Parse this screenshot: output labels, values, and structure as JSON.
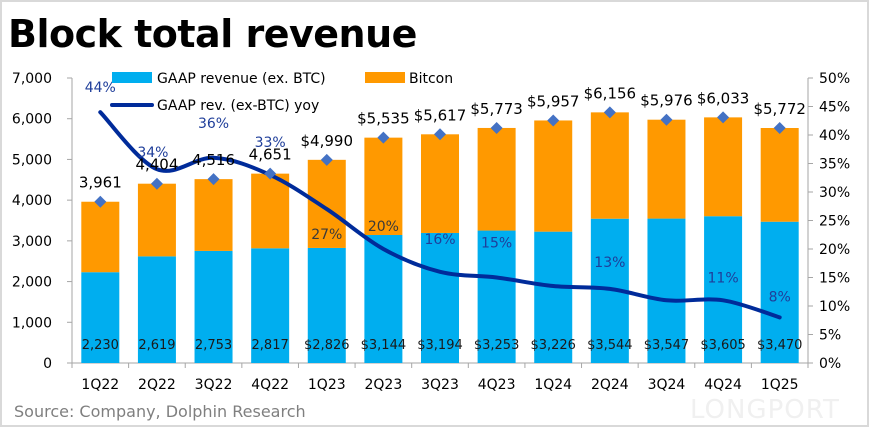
{
  "title": "Block total revenue",
  "source": "Source: Company, Dolphin Research",
  "watermark": "LONGPORT",
  "colors": {
    "gaap": "#00aeef",
    "bitcoin": "#ff9900",
    "yoy_line": "#002b9a",
    "marker": "#4472c4",
    "axis": "#a6a6a6"
  },
  "chart_data": {
    "type": "bar",
    "title": "Block total revenue",
    "xlabel": "",
    "ylabel": "",
    "ylim": [
      0,
      7000
    ],
    "y2lim": [
      0,
      50
    ],
    "yticks": [
      "0",
      "1,000",
      "2,000",
      "3,000",
      "4,000",
      "5,000",
      "6,000",
      "7,000"
    ],
    "y2ticks": [
      "0%",
      "5%",
      "10%",
      "15%",
      "20%",
      "25%",
      "30%",
      "35%",
      "40%",
      "45%",
      "50%"
    ],
    "legend": {
      "placement": "top-left",
      "entries": [
        "GAAP revenue (ex. BTC)",
        "Bitcon",
        "GAAP rev. (ex-BTC) yoy"
      ]
    },
    "categories": [
      "1Q22",
      "2Q22",
      "3Q22",
      "4Q22",
      "1Q23",
      "2Q23",
      "3Q23",
      "4Q23",
      "1Q24",
      "2Q24",
      "3Q24",
      "4Q24",
      "1Q25"
    ],
    "series": [
      {
        "name": "GAAP revenue (ex. BTC)",
        "type": "stacked-bar",
        "values": [
          2230,
          2619,
          2753,
          2817,
          2826,
          3144,
          3194,
          3253,
          3226,
          3544,
          3547,
          3605,
          3470
        ],
        "labels": [
          "2,230",
          "2,619",
          "2,753",
          "2,817",
          "$2,826",
          "$3,144",
          "$3,194",
          "$3,253",
          "$3,226",
          "$3,544",
          "$3,547",
          "$3,605",
          "$3,470"
        ]
      },
      {
        "name": "Bitcon",
        "type": "stacked-bar",
        "values": [
          1731,
          1785,
          1763,
          1834,
          2164,
          2391,
          2423,
          2520,
          2731,
          2612,
          2429,
          2428,
          2302
        ]
      },
      {
        "name": "Total revenue",
        "type": "marker",
        "values": [
          3961,
          4404,
          4516,
          4651,
          4990,
          5535,
          5617,
          5773,
          5957,
          6156,
          5976,
          6033,
          5772
        ],
        "labels": [
          "3,961",
          "4,404",
          "4,516",
          "4,651",
          "$4,990",
          "$5,535",
          "$5,617",
          "$5,773",
          "$5,957",
          "$6,156",
          "$5,976",
          "$6,033",
          "$5,772"
        ]
      },
      {
        "name": "GAAP rev. (ex-BTC) yoy",
        "type": "line",
        "axis": "secondary",
        "values": [
          44,
          34,
          36,
          33,
          27,
          20,
          16,
          15,
          13.5,
          13,
          11,
          11,
          8
        ],
        "labels": [
          "44%",
          "34%",
          "36%",
          "33%",
          "27%",
          "20%",
          "16%",
          "15%",
          "",
          "13%",
          "",
          "11%",
          "8%"
        ]
      }
    ]
  }
}
